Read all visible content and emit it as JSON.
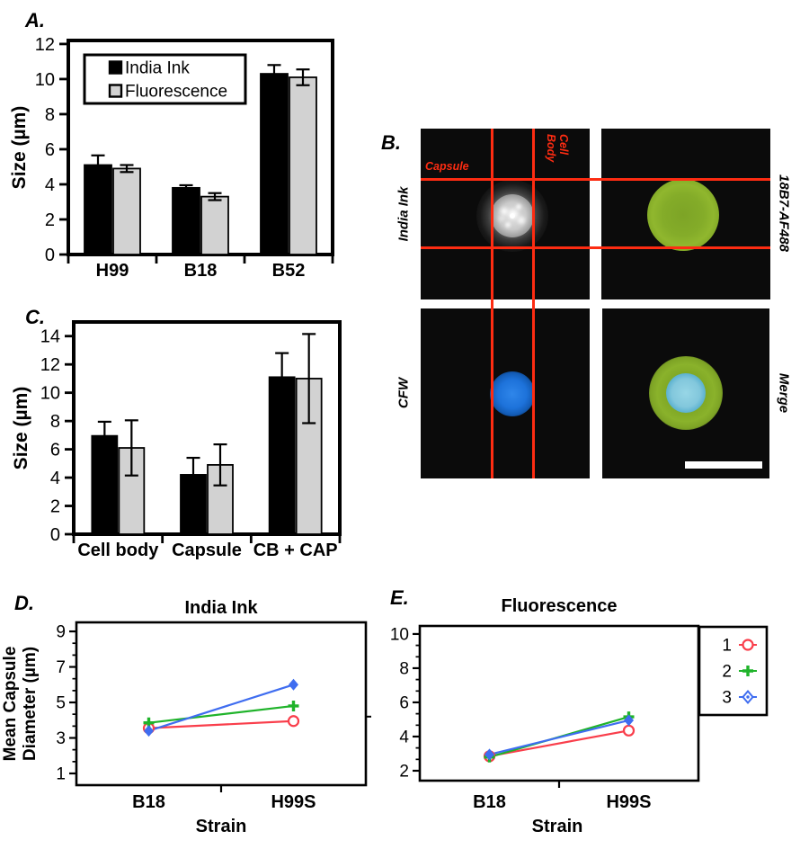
{
  "colors": {
    "bar_india_ink": "#000000",
    "bar_fluorescence": "#d2d2d2",
    "series_red": "#f93e4b",
    "series_green": "#1fb32a",
    "series_blue": "#3f6df0",
    "crosshair_red": "#fd2c12"
  },
  "panels": {
    "A": {
      "label": "A."
    },
    "B": {
      "label": "B.",
      "image_labels": {
        "top_left": "India Ink",
        "top_right": "18B7-AF488",
        "bottom_left": "CFW",
        "bottom_right": "Merge"
      },
      "annotations": {
        "capsule": "Capsule",
        "cell_body": "Cell\nBody"
      }
    },
    "C": {
      "label": "C."
    },
    "D": {
      "label": "D."
    },
    "E": {
      "label": "E."
    }
  },
  "chart_data": [
    {
      "id": "A",
      "type": "bar",
      "ylabel": "Size (µm)",
      "ylim": [
        0,
        12.2
      ],
      "yticks": [
        0,
        2,
        4,
        6,
        8,
        10,
        12
      ],
      "categories": [
        "H99",
        "B18",
        "B52"
      ],
      "series": [
        {
          "name": "India Ink",
          "color_key": "bar_india_ink",
          "values": [
            5.1,
            3.8,
            10.3
          ],
          "errors": [
            0.55,
            0.15,
            0.5
          ]
        },
        {
          "name": "Fluorescence",
          "color_key": "bar_fluorescence",
          "values": [
            4.9,
            3.3,
            10.1
          ],
          "errors": [
            0.2,
            0.2,
            0.45
          ]
        }
      ],
      "legend": {
        "entries": [
          "India Ink",
          "Fluorescence"
        ],
        "position": "top-left"
      }
    },
    {
      "id": "C",
      "type": "bar",
      "ylabel": "Size (µm)",
      "ylim": [
        0,
        15
      ],
      "yticks": [
        0,
        2,
        4,
        6,
        8,
        10,
        12,
        14
      ],
      "categories": [
        "Cell body",
        "Capsule",
        "CB + CAP"
      ],
      "series": [
        {
          "name": "India Ink",
          "color_key": "bar_india_ink",
          "values": [
            6.95,
            4.2,
            11.1
          ],
          "errors": [
            1.0,
            1.2,
            1.7
          ]
        },
        {
          "name": "Fluorescence",
          "color_key": "bar_fluorescence",
          "values": [
            6.1,
            4.9,
            11.0
          ],
          "errors": [
            1.95,
            1.45,
            3.15
          ]
        }
      ]
    },
    {
      "id": "D",
      "type": "line",
      "title": "India Ink",
      "xlabel": "Strain",
      "ylabel": "Mean Capsule\nDiameter (µm)",
      "ylim": [
        0.34,
        9.51
      ],
      "yticks": [
        1,
        3,
        5,
        7,
        9
      ],
      "minor_per_major": 2,
      "categories": [
        "B18",
        "H99S"
      ],
      "series": [
        {
          "name": "1",
          "color_key": "series_red",
          "marker": "circle",
          "values": [
            3.55,
            3.95
          ]
        },
        {
          "name": "2",
          "color_key": "series_green",
          "marker": "plus",
          "values": [
            3.85,
            4.8
          ]
        },
        {
          "name": "3",
          "color_key": "series_blue",
          "marker": "diamond",
          "values": [
            3.4,
            6.0
          ]
        }
      ]
    },
    {
      "id": "E",
      "type": "line",
      "title": "Fluorescence",
      "xlabel": "Strain",
      "ylabel": "",
      "ylim": [
        1.42,
        10.47
      ],
      "yticks": [
        2,
        4,
        6,
        8,
        10
      ],
      "minor_per_major": 2,
      "categories": [
        "B18",
        "H99S"
      ],
      "series": [
        {
          "name": "1",
          "color_key": "series_red",
          "marker": "circle",
          "values": [
            2.85,
            4.35
          ]
        },
        {
          "name": "2",
          "color_key": "series_green",
          "marker": "plus",
          "values": [
            2.8,
            5.15
          ]
        },
        {
          "name": "3",
          "color_key": "series_blue",
          "marker": "diamond",
          "values": [
            2.95,
            4.95
          ]
        }
      ],
      "legend": {
        "entries": [
          "1",
          "2",
          "3"
        ],
        "position": "right"
      }
    }
  ]
}
